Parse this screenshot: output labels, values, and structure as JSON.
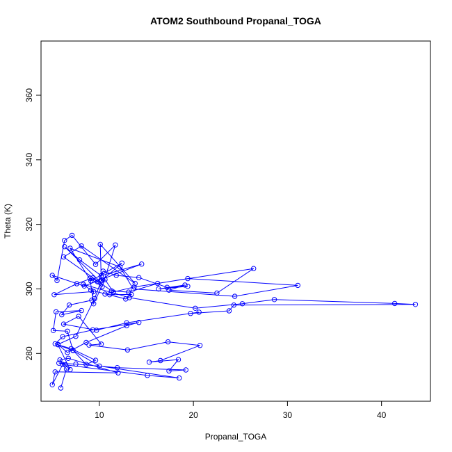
{
  "chart_data": {
    "type": "line",
    "title": "ATOM2 Southbound Propanal_TOGA",
    "xlabel": "Propanal_TOGA",
    "ylabel": "Theta (K)",
    "xlim": [
      3.8,
      45.2
    ],
    "ylim": [
      265.2,
      376.8
    ],
    "xticks": [
      10,
      20,
      30,
      40
    ],
    "yticks": [
      280,
      300,
      320,
      340,
      360
    ],
    "grid": false,
    "legend": "none",
    "color": "#0000ff",
    "marker": "open-circle",
    "series": [
      {
        "x": [
          5.9,
          6.5,
          6.1,
          5.0,
          5.3,
          12.0,
          6.7,
          5.8,
          6.9,
          5.6,
          7.0,
          9.6,
          8.6,
          7.2,
          6.6,
          5.1,
          5.4,
          8.1,
          6.0,
          6.8,
          9.2,
          9.4,
          5.2,
          7.6,
          9.3,
          9.8,
          10.4,
          11.8,
          14.2,
          17.2,
          19.4,
          16.3,
          19.1,
          17.4,
          22.5,
          26.4,
          13.7,
          10.6,
          11.1,
          13.4,
          12.8,
          9.1,
          8.3,
          13.2,
          20.2,
          25.2,
          28.6,
          41.4,
          43.6,
          24.3,
          23.8,
          19.7,
          20.6,
          12.9,
          9.7,
          6.2,
          7.8,
          10.2,
          8.9,
          13.0,
          17.3,
          20.7,
          16.5,
          15.3,
          18.4,
          17.4,
          19.2,
          11.9,
          7.5,
          5.7,
          6.4,
          15.1,
          18.5,
          10.0,
          7.2,
          5.3,
          6.1,
          9.3,
          14.2,
          12.9,
          8.6,
          6.6,
          5.6,
          7.5,
          9.5,
          10.2,
          10.1,
          13.8,
          8.1,
          6.2,
          11.3,
          13.1,
          16.2,
          19.4,
          31.1,
          24.4,
          13.6,
          12.2,
          6.9,
          9.1,
          12.4,
          10.1,
          6.3,
          7.9,
          10.2,
          14.5,
          8.4,
          5.0,
          5.5,
          6.3,
          7.1,
          9.6,
          11.7,
          10.3,
          9.0,
          9.4,
          10.6,
          11.5
        ],
        "y": [
          269.3,
          275.2,
          276.6,
          270.3,
          274.3,
          274.0,
          278.5,
          278.0,
          275.0,
          282.7,
          281.5,
          277.9,
          276.6,
          281.0,
          286.9,
          287.1,
          292.9,
          293.3,
          292.0,
          295.0,
          296.5,
          299.2,
          298.2,
          301.6,
          303.4,
          302.2,
          305.5,
          304.2,
          303.5,
          300.5,
          300.8,
          300.0,
          301.2,
          299.6,
          298.7,
          306.3,
          300.6,
          298.4,
          298.2,
          298.3,
          296.9,
          299.6,
          301.4,
          297.3,
          294.0,
          295.4,
          296.7,
          295.5,
          295.2,
          295.0,
          293.2,
          292.4,
          292.8,
          289.5,
          287.2,
          289.1,
          291.5,
          282.9,
          282.6,
          281.1,
          283.6,
          282.5,
          277.8,
          277.3,
          278.1,
          274.6,
          274.9,
          275.6,
          276.7,
          277.0,
          276.5,
          273.2,
          272.4,
          276.1,
          280.9,
          283.0,
          285.2,
          287.3,
          289.6,
          288.6,
          283.4,
          280.3,
          282.8,
          285.3,
          297.0,
          302.6,
          313.8,
          301.7,
          313.3,
          309.9,
          299.4,
          299.0,
          301.7,
          303.2,
          301.1,
          297.7,
          300.0,
          306.8,
          312.6,
          302.5,
          308.0,
          302.2,
          313.1,
          309.0,
          304.1,
          307.7,
          300.9,
          304.2,
          302.6,
          315.0,
          316.6,
          307.6,
          313.6,
          300.7,
          303.3,
          295.4,
          302.9,
          299.0
        ]
      }
    ]
  }
}
